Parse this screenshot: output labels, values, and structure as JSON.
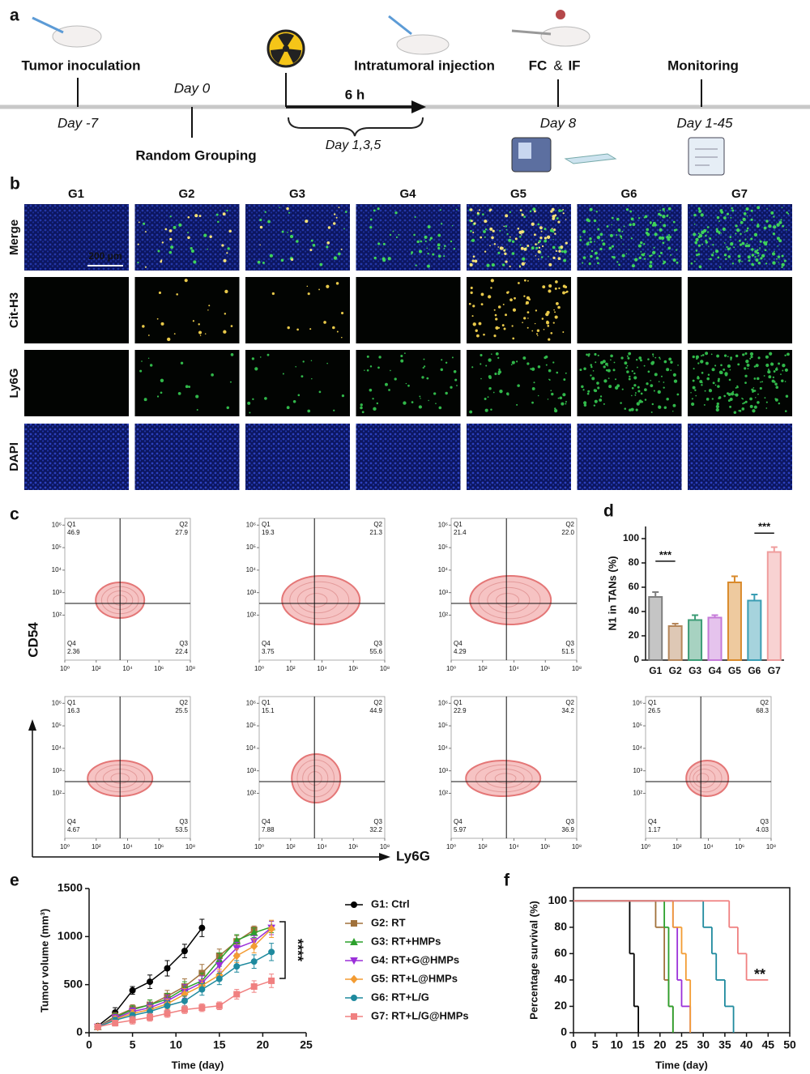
{
  "panel_labels": [
    "a",
    "b",
    "c",
    "d",
    "e",
    "f"
  ],
  "timeline": {
    "tumor": "Tumor inoculation",
    "day_m7": "Day -7",
    "day0": "Day 0",
    "grouping": "Random Grouping",
    "duration": "6 h",
    "days135": "Day 1,3,5",
    "injection": "Intratumoral injection",
    "fc": "FC",
    "amp": "&",
    "if": "IF",
    "day8": "Day 8",
    "monitoring": "Monitoring",
    "day145": "Day 1-45"
  },
  "microscopy": {
    "groups": [
      "G1",
      "G2",
      "G3",
      "G4",
      "G5",
      "G6",
      "G7"
    ],
    "channels": [
      "Merge",
      "Cit-H3",
      "Ly6G",
      "DAPI"
    ],
    "scale_bar": "200 μm"
  },
  "flow": {
    "xlabel": "Ly6G",
    "ylabel": "CD54",
    "quadrants": [
      "Q1",
      "Q2",
      "Q3",
      "Q4"
    ],
    "xlim": [
      0,
      8
    ],
    "xticks": [
      {
        "value": 0,
        "label": "10⁰"
      },
      {
        "value": 2,
        "label": "10²"
      },
      {
        "value": 4,
        "label": "10⁴"
      },
      {
        "value": 6,
        "label": "10⁶"
      },
      {
        "value": 8,
        "label": "10⁸"
      }
    ],
    "ylim": [
      0,
      6.3
    ],
    "yticks": [
      {
        "value": 2,
        "label": "10²"
      },
      {
        "value": 3,
        "label": "10³"
      },
      {
        "value": 4,
        "label": "10⁴"
      },
      {
        "value": 5,
        "label": "10⁵"
      },
      {
        "value": 6,
        "label": "10⁶"
      }
    ],
    "plots": [
      [
        "46.9",
        "27.9",
        "22.4",
        "2.36"
      ],
      [
        "19.3",
        "21.3",
        "55.6",
        "3.75"
      ],
      [
        "21.4",
        "22.0",
        "51.5",
        "4.29"
      ],
      [
        "16.3",
        "25.5",
        "53.5",
        "4.67"
      ],
      [
        "15.1",
        "44.9",
        "32.2",
        "7.88"
      ],
      [
        "22.9",
        "34.2",
        "36.9",
        "5.97"
      ],
      [
        "26.5",
        "68.3",
        "4.03",
        "1.17"
      ]
    ]
  },
  "chart_data": [
    {
      "type": "bar",
      "ylabel": "N1 in TANs (%)",
      "categories": [
        "G1",
        "G2",
        "G3",
        "G4",
        "G5",
        "G6",
        "G7"
      ],
      "values": [
        52,
        28,
        33,
        35,
        64,
        49,
        89
      ],
      "errors": [
        4,
        2,
        4,
        2,
        5,
        5,
        4
      ],
      "colors": [
        "#7f7f7f",
        "#b5865a",
        "#3c9c76",
        "#c57ad8",
        "#d98a2b",
        "#3a9db3",
        "#ef9c9c"
      ],
      "ylim": [
        0,
        110
      ],
      "yticks": [
        0,
        20,
        40,
        60,
        80,
        100
      ],
      "annotations": [
        "***",
        "***"
      ]
    },
    {
      "type": "line",
      "xlabel": "Time (day)",
      "ylabel": "Tumor volume (mm³)",
      "x": [
        1,
        3,
        5,
        7,
        9,
        11,
        13,
        15,
        17,
        19,
        21
      ],
      "xlim": [
        0,
        25
      ],
      "xticks": [
        0,
        5,
        10,
        15,
        20,
        25
      ],
      "ylim": [
        0,
        1500
      ],
      "yticks": [
        0,
        500,
        1000,
        1500
      ],
      "series": [
        {
          "name": "G1: Ctrl",
          "color": "#000000",
          "marker": "circle",
          "values": [
            70,
            210,
            440,
            530,
            670,
            850,
            1090,
            null,
            null,
            null,
            null
          ],
          "errors": [
            20,
            50,
            40,
            70,
            80,
            70,
            90,
            null,
            null,
            null,
            null
          ]
        },
        {
          "name": "G2: RT",
          "color": "#a0713b",
          "marker": "square",
          "values": [
            60,
            170,
            250,
            290,
            380,
            480,
            620,
            800,
            950,
            1070,
            null
          ],
          "errors": [
            15,
            40,
            40,
            50,
            60,
            80,
            90,
            70,
            60,
            40,
            null
          ]
        },
        {
          "name": "G3: RT+HMPs",
          "color": "#2ca02c",
          "marker": "triangle-up",
          "values": [
            60,
            160,
            240,
            290,
            350,
            460,
            540,
            760,
            960,
            1040,
            1100
          ],
          "errors": [
            15,
            40,
            40,
            50,
            60,
            70,
            80,
            70,
            60,
            50,
            60
          ]
        },
        {
          "name": "G4: RT+G@HMPs",
          "color": "#9b30d9",
          "marker": "triangle-down",
          "values": [
            60,
            150,
            220,
            260,
            330,
            430,
            520,
            700,
            880,
            950,
            1090
          ],
          "errors": [
            15,
            40,
            40,
            50,
            60,
            70,
            70,
            60,
            60,
            60,
            70
          ]
        },
        {
          "name": "G5: RT+L@HMPs",
          "color": "#f39c33",
          "marker": "diamond",
          "values": [
            60,
            140,
            200,
            240,
            300,
            400,
            490,
            600,
            800,
            900,
            1080
          ],
          "errors": [
            15,
            30,
            40,
            40,
            50,
            60,
            60,
            60,
            70,
            70,
            90
          ]
        },
        {
          "name": "G6: RT+L/G",
          "color": "#1f8a9e",
          "marker": "circle",
          "values": [
            60,
            130,
            180,
            220,
            280,
            330,
            450,
            560,
            690,
            740,
            840
          ],
          "errors": [
            15,
            30,
            30,
            40,
            50,
            50,
            60,
            60,
            60,
            70,
            90
          ]
        },
        {
          "name": "G7: RT+L/G@HMPs",
          "color": "#f08080",
          "marker": "square",
          "values": [
            60,
            100,
            130,
            160,
            200,
            240,
            260,
            280,
            400,
            480,
            540
          ],
          "errors": [
            15,
            30,
            40,
            40,
            40,
            40,
            40,
            40,
            50,
            60,
            70
          ]
        }
      ],
      "annotations": [
        "****"
      ]
    },
    {
      "type": "step",
      "xlabel": "Time (day)",
      "ylabel": "Percentage survival (%)",
      "xlim": [
        0,
        50
      ],
      "xticks": [
        0,
        5,
        10,
        15,
        20,
        25,
        30,
        35,
        40,
        45,
        50
      ],
      "ylim": [
        0,
        110
      ],
      "yticks": [
        0,
        20,
        40,
        60,
        80,
        100
      ],
      "series": [
        {
          "color": "#000000",
          "x": [
            0,
            13,
            14,
            15
          ],
          "values": [
            100,
            60,
            20,
            0
          ]
        },
        {
          "color": "#a0713b",
          "x": [
            0,
            19,
            21,
            22,
            23
          ],
          "values": [
            100,
            80,
            40,
            20,
            0
          ]
        },
        {
          "color": "#2ca02c",
          "x": [
            0,
            21,
            22,
            23
          ],
          "values": [
            100,
            80,
            20,
            0
          ]
        },
        {
          "color": "#9b30d9",
          "x": [
            0,
            23,
            24,
            25,
            27
          ],
          "values": [
            100,
            80,
            40,
            20,
            0
          ]
        },
        {
          "color": "#f39c33",
          "x": [
            0,
            23,
            25,
            26,
            27
          ],
          "values": [
            100,
            80,
            60,
            40,
            0
          ]
        },
        {
          "color": "#1f8a9e",
          "x": [
            0,
            30,
            32,
            33,
            35,
            37
          ],
          "values": [
            100,
            80,
            60,
            40,
            20,
            0
          ]
        },
        {
          "color": "#f08080",
          "x": [
            0,
            36,
            38,
            40,
            45
          ],
          "values": [
            100,
            80,
            60,
            40,
            40
          ]
        }
      ],
      "annotations": [
        "**"
      ]
    }
  ]
}
